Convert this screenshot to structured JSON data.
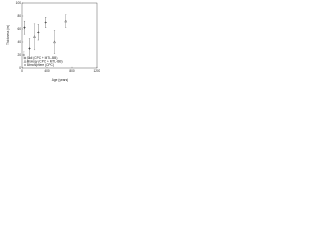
{
  "chart_data": {
    "type": "scatter",
    "x_label": "Age (years)",
    "y_label": "Thickness (m)",
    "xlim": [
      0,
      1200
    ],
    "xticks": [
      0,
      400,
      800,
      1200
    ],
    "ylim": [
      0,
      100
    ],
    "yticks": [
      0,
      20,
      40,
      60,
      80,
      100
    ],
    "legend": "lower left",
    "series": [
      {
        "name": "Soil (CPC + MTL-BB)",
        "color": "#222222",
        "marker": "cross",
        "x": [
          40,
          120,
          260,
          380
        ],
        "values": [
          62,
          30,
          55,
          70
        ],
        "errors": [
          10,
          15,
          12,
          8
        ]
      },
      {
        "name": "Biology (CPC + MTL-BB)",
        "color": "#555555",
        "marker": "triangle",
        "x": [
          200,
          520,
          700
        ],
        "values": [
          48,
          40,
          72
        ],
        "errors": [
          20,
          18,
          10
        ]
      },
      {
        "name": "Atmosphere (CPC)",
        "color": "#888888",
        "marker": "circle",
        "x": [
          30,
          90
        ],
        "values": [
          20,
          10
        ],
        "errors": [
          5,
          4
        ]
      }
    ]
  }
}
